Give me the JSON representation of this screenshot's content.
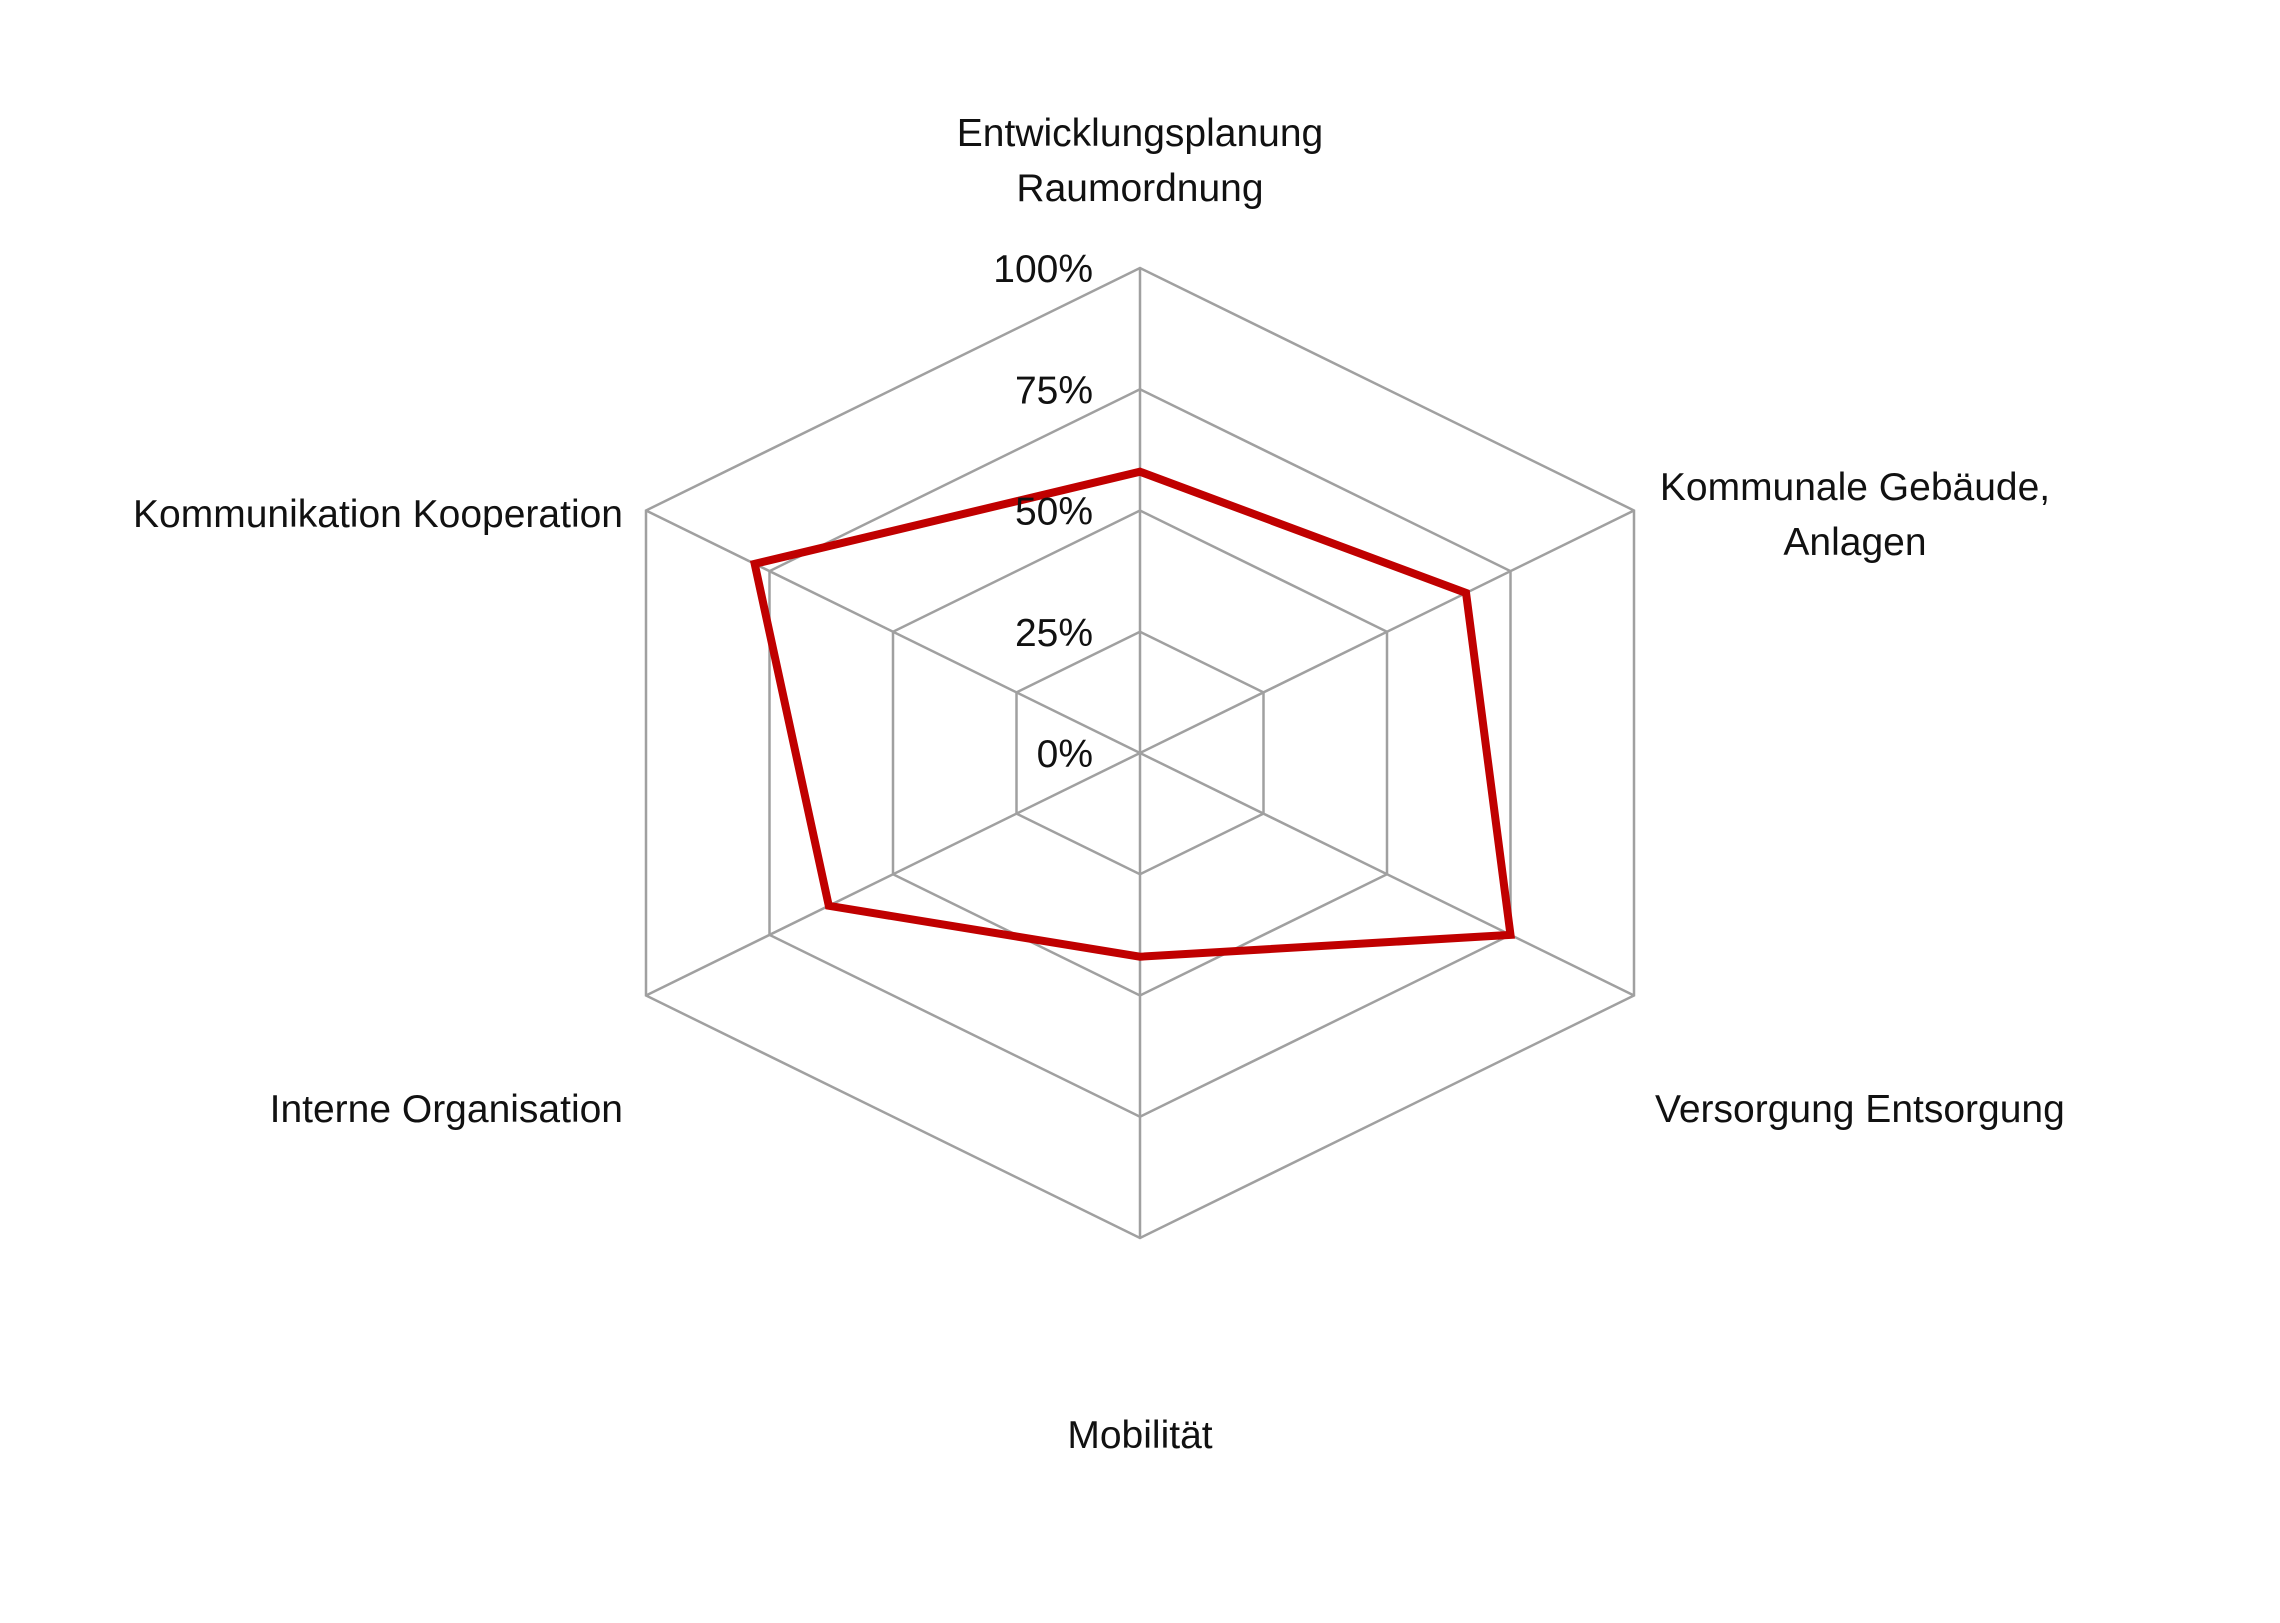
{
  "chart_data": {
    "type": "radar",
    "categories": [
      [
        "Entwicklungsplanung",
        "Raumordnung"
      ],
      [
        "Kommunale Gebäude,",
        "Anlagen"
      ],
      [
        "Versorgung Entsorgung"
      ],
      [
        "Mobilität"
      ],
      [
        "Interne Organisation"
      ],
      [
        "Kommunikation Kooperation"
      ]
    ],
    "series": [
      {
        "values": [
          58,
          66,
          75,
          42,
          63,
          78
        ],
        "color": "#c00000"
      }
    ],
    "rlim": [
      0,
      100
    ],
    "ticks": [
      "0%",
      "25%",
      "50%",
      "75%",
      "100%"
    ],
    "tick_values": [
      0,
      25,
      50,
      75,
      100
    ],
    "grid": true,
    "grid_color": "#a0a0a0",
    "legend": "none"
  }
}
